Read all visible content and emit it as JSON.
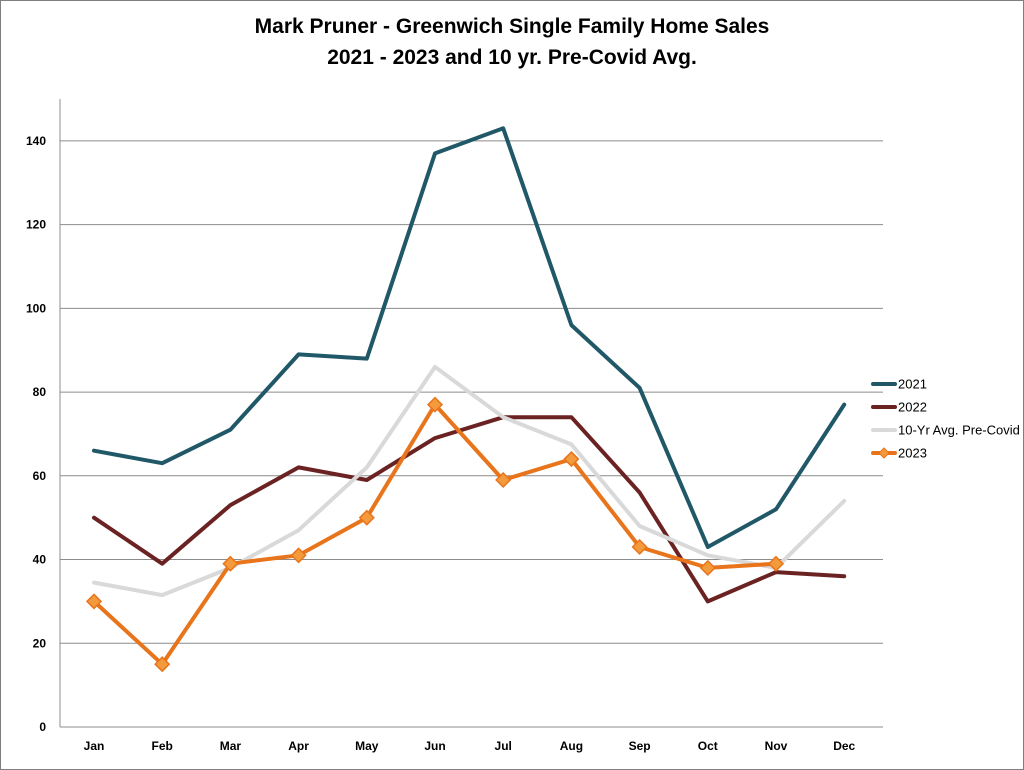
{
  "chart_data": {
    "type": "line",
    "title_lines": [
      "Mark Pruner - Greenwich Single Family Home Sales",
      "2021 - 2023 and 10 yr. Pre-Covid Avg."
    ],
    "categories": [
      "Jan",
      "Feb",
      "Mar",
      "Apr",
      "May",
      "Jun",
      "Jul",
      "Aug",
      "Sep",
      "Oct",
      "Nov",
      "Dec"
    ],
    "ylim": [
      0,
      150
    ],
    "yticks": [
      0,
      20,
      40,
      60,
      80,
      100,
      120,
      140
    ],
    "grid": true,
    "legend_position": "right",
    "series": [
      {
        "name": "2022",
        "color": "#6b2222",
        "values": [
          50,
          39,
          53,
          62,
          59,
          69,
          74,
          74,
          56,
          30,
          37,
          36
        ]
      },
      {
        "name": "10-Yr Avg. Pre-Covid",
        "color": "#d9d9d9",
        "values": [
          34.5,
          31.5,
          38,
          47,
          62,
          86,
          74,
          67.5,
          48,
          41,
          38,
          54
        ]
      },
      {
        "name": "2021",
        "color": "#215868",
        "values": [
          66,
          63,
          71,
          89,
          88,
          137,
          143,
          96,
          81,
          43,
          52,
          77
        ]
      },
      {
        "name": "2023",
        "color": "#e8741b",
        "marker": "diamond",
        "marker_color": "#f39a3c",
        "values": [
          30,
          15,
          39,
          41,
          50,
          77,
          59,
          64,
          43,
          38,
          39,
          null
        ]
      }
    ],
    "legend_order": [
      "2021",
      "2022",
      "10-Yr Avg. Pre-Covid",
      "2023"
    ]
  }
}
